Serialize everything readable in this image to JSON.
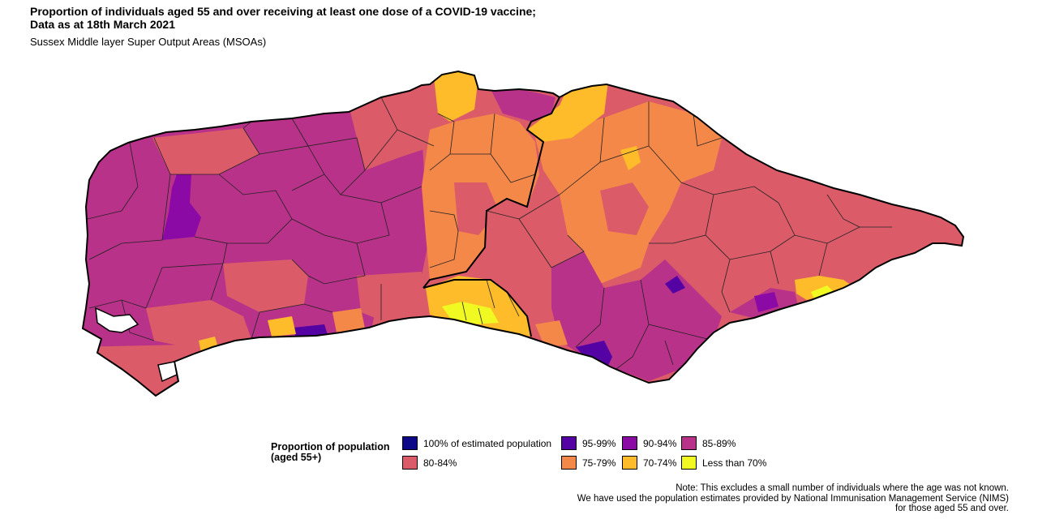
{
  "title_line1": "Proportion of individuals aged 55 and over receiving at least one dose of a COVID-19 vaccine;",
  "title_line2": "Data as at 18th March 2021",
  "subtitle": "Sussex Middle layer Super Output Areas (MSOAs)",
  "legend": {
    "title_line1": "Proportion of population",
    "title_line2": "(aged 55+)",
    "items": [
      {
        "label": "100% of estimated population",
        "color": "#0d0887"
      },
      {
        "label": "95-99%",
        "color": "#5402a3"
      },
      {
        "label": "90-94%",
        "color": "#8b0aa5"
      },
      {
        "label": "85-89%",
        "color": "#b93289"
      },
      {
        "label": "80-84%",
        "color": "#db5c68"
      },
      {
        "label": "75-79%",
        "color": "#f48849"
      },
      {
        "label": "70-74%",
        "color": "#febc2a"
      },
      {
        "label": "Less than 70%",
        "color": "#f0f921"
      }
    ]
  },
  "note": {
    "line1": "Note: This excludes a small number of individuals where the age was not known.",
    "line2": "We have used the population estimates provided by National Immunisation Management Service (NIMS)",
    "line3": "for those aged 55 and over."
  }
}
